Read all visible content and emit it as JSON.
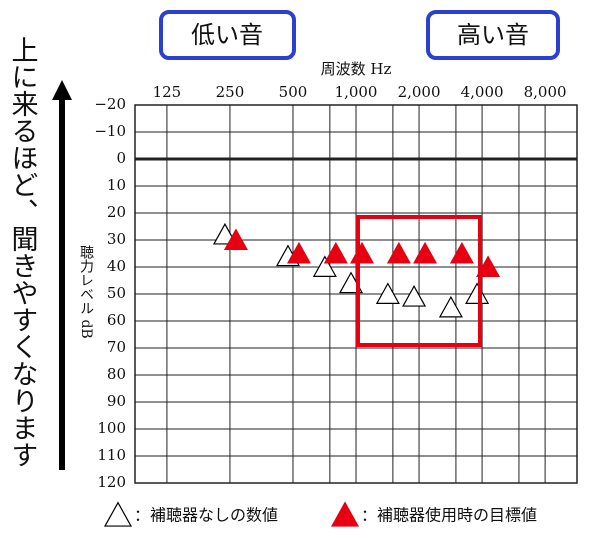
{
  "chart_data": {
    "type": "scatter",
    "x_label": "周波数 Hz",
    "y_label": "聴力レベル dB",
    "side_note": "上に来るほど、聞きやすくなります",
    "low_label": "低い音",
    "high_label": "高い音",
    "x": [
      250,
      500,
      750,
      1000,
      1500,
      2000,
      3000,
      4000
    ],
    "series": [
      {
        "name": "：補聴器なしの数値",
        "marker": "open-triangle",
        "color": "#000000",
        "values": [
          28,
          36,
          40,
          46,
          50,
          51,
          55,
          50
        ]
      },
      {
        "name": "：補聴器使用時の目標値",
        "marker": "filled-triangle",
        "color": "#e60012",
        "values": [
          30,
          35,
          35,
          35,
          35,
          35,
          35,
          40
        ]
      }
    ],
    "xlog": true,
    "xlim": [
      88,
      11360
    ],
    "xticks": [
      125,
      250,
      500,
      {
        "value": 1000,
        "label": "1,000"
      },
      {
        "value": 2000,
        "label": "2,000"
      },
      {
        "value": 4000,
        "label": "4,000"
      },
      {
        "value": 8000,
        "label": "8,000"
      }
    ],
    "xminor": [
      750,
      1500,
      3000,
      6000
    ],
    "ylim": [
      -20,
      120
    ],
    "yinverted": true,
    "yticks": [
      {
        "value": -20,
        "label": "−20"
      },
      {
        "value": -10,
        "label": "−10"
      },
      0,
      10,
      20,
      30,
      40,
      50,
      60,
      70,
      80,
      90,
      100,
      110,
      120
    ],
    "grid": true
  }
}
